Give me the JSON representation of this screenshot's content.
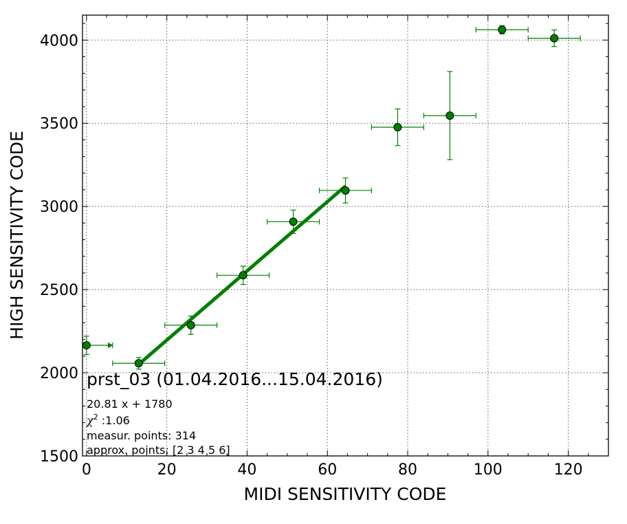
{
  "chart_data": {
    "type": "scatter",
    "title": "",
    "xlabel": "MIDI SENSITIVITY CODE",
    "ylabel": "HIGH SENSITIVITY CODE",
    "xlim": [
      -1,
      130
    ],
    "ylim": [
      1500,
      4150
    ],
    "xticks": [
      0,
      20,
      40,
      60,
      80,
      100,
      120
    ],
    "yticks": [
      1500,
      2000,
      2500,
      3000,
      3500,
      4000
    ],
    "grid": true,
    "series": [
      {
        "color": "#008000",
        "points": [
          {
            "x": 0,
            "y": 2165,
            "xerr": 6.5,
            "yerr": 55
          },
          {
            "x": 13,
            "y": 2057,
            "xerr": 6.5,
            "yerr": 35
          },
          {
            "x": 26,
            "y": 2286,
            "xerr": 6.5,
            "yerr": 55
          },
          {
            "x": 39,
            "y": 2586,
            "xerr": 6.5,
            "yerr": 55
          },
          {
            "x": 51.5,
            "y": 2908,
            "xerr": 6.5,
            "yerr": 70
          },
          {
            "x": 64.5,
            "y": 3096,
            "xerr": 6.5,
            "yerr": 75
          },
          {
            "x": 77.5,
            "y": 3476,
            "xerr": 6.5,
            "yerr": 110
          },
          {
            "x": 90.5,
            "y": 3546,
            "xerr": 6.5,
            "yerr": 265
          },
          {
            "x": 103.5,
            "y": 4062,
            "xerr": 6.5,
            "yerr": 25
          },
          {
            "x": 116.5,
            "y": 4011,
            "xerr": 6.5,
            "yerr": 50
          }
        ]
      }
    ],
    "fit": {
      "slope": 20.81,
      "intercept": 1780,
      "x_range": [
        13,
        64.5
      ],
      "color": "#008000"
    },
    "annotations": {
      "main": "prst_03 (01.04.2016...15.04.2016)",
      "equation": "20.81 x + 1780",
      "chi_symbol": "χ",
      "chi_sup": "2",
      "chi_value": " :1.06",
      "measur": "measur. points: 314",
      "approx": "approx. points: [2 3 4 5 6]"
    }
  }
}
